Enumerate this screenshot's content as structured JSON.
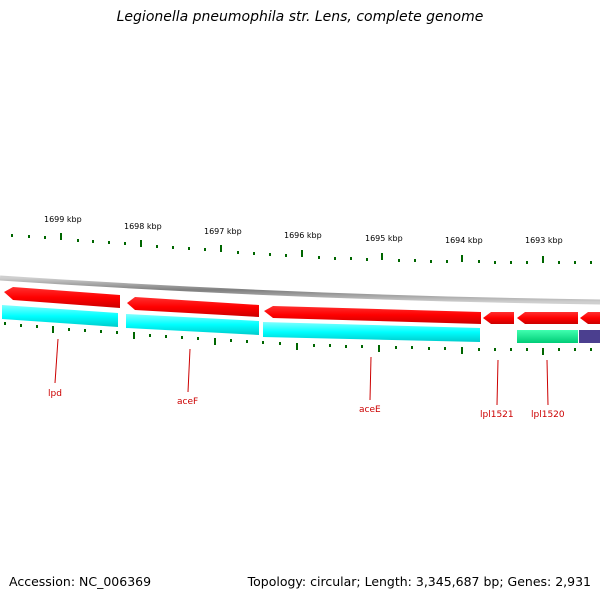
{
  "title": "Legionella pneumophila str. Lens, complete genome",
  "accession": "Accession: NC_006369",
  "summary": "Topology: circular; Length: 3,345,687 bp; Genes: 2,931",
  "scale_labels": [
    "1699 kbp",
    "1698 kbp",
    "1697 kbp",
    "1696 kbp",
    "1695 kbp",
    "1694 kbp",
    "1693 kbp"
  ],
  "genes": [
    "lpd",
    "aceF",
    "aceE",
    "lpl1521",
    "lpl1520"
  ],
  "colors": {
    "cds_forward": "#ff0000",
    "gene_band": "#00ffff",
    "gene_band_alt": "#00ee88",
    "other_feature": "#4b3f8f",
    "backbone": "#8a8a8a",
    "tick": "#006600",
    "gene_label": "#cc0000"
  }
}
